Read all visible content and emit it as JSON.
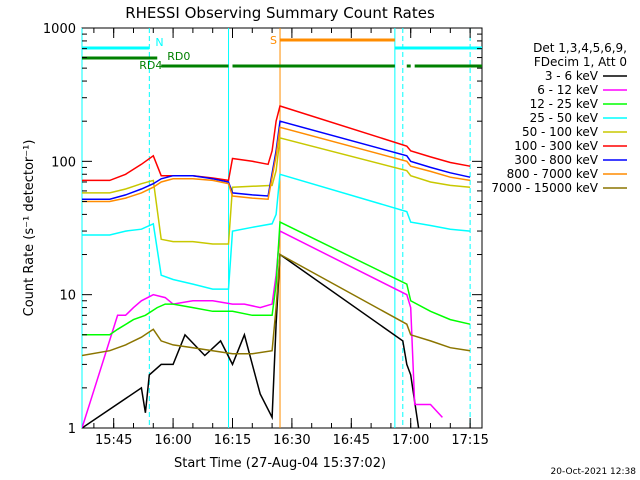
{
  "chart_data": {
    "type": "line",
    "title": "RHESSI Observing Summary Count Rates",
    "xlabel": "Start Time (27-Aug-04 15:37:02)",
    "ylabel": "Count Rate (s⁻¹ detector⁻¹)",
    "yscale": "log",
    "ylim": [
      1,
      1000
    ],
    "xlim": [
      "15:37",
      "17:18"
    ],
    "x_ticks": [
      "15:45",
      "16:00",
      "16:15",
      "16:30",
      "16:45",
      "17:00",
      "17:15"
    ],
    "y_ticks": [
      "1",
      "10",
      "100",
      "1000"
    ],
    "legend_header": [
      "Det 1,3,4,5,6,9,",
      "FDecim 1, Att 0"
    ],
    "legend_position": "right",
    "series": [
      {
        "name": "3 - 6 keV",
        "color": "#000000",
        "points": [
          [
            "15:37",
            1.0
          ],
          [
            "15:52",
            2.0
          ],
          [
            "15:53",
            1.3
          ],
          [
            "15:54",
            2.5
          ],
          [
            "15:57",
            3.0
          ],
          [
            "16:00",
            3.0
          ],
          [
            "16:03",
            5.0
          ],
          [
            "16:08",
            3.5
          ],
          [
            "16:12",
            4.5
          ],
          [
            "16:15",
            3.0
          ],
          [
            "16:18",
            5.0
          ],
          [
            "16:22",
            1.8
          ],
          [
            "16:25",
            1.2
          ],
          [
            "16:26",
            6.0
          ],
          [
            "16:27",
            20.0
          ],
          [
            "16:58",
            4.5
          ],
          [
            "16:59",
            3.0
          ],
          [
            "17:00",
            2.5
          ],
          [
            "17:02",
            1.0
          ]
        ]
      },
      {
        "name": "6 - 12 keV",
        "color": "#ff00ff",
        "points": [
          [
            "15:37",
            1.0
          ],
          [
            "15:46",
            7.0
          ],
          [
            "15:48",
            7.0
          ],
          [
            "15:50",
            8.0
          ],
          [
            "15:52",
            9.0
          ],
          [
            "15:55",
            10.0
          ],
          [
            "15:58",
            9.5
          ],
          [
            "16:00",
            8.5
          ],
          [
            "16:05",
            9.0
          ],
          [
            "16:10",
            9.0
          ],
          [
            "16:15",
            8.5
          ],
          [
            "16:18",
            8.5
          ],
          [
            "16:22",
            8.0
          ],
          [
            "16:25",
            8.5
          ],
          [
            "16:26",
            14.0
          ],
          [
            "16:27",
            30.0
          ],
          [
            "16:59",
            10.0
          ],
          [
            "17:00",
            8.0
          ],
          [
            "17:01",
            1.5
          ],
          [
            "17:05",
            1.5
          ],
          [
            "17:08",
            1.2
          ]
        ]
      },
      {
        "name": "12 - 25 keV",
        "color": "#00ff00",
        "points": [
          [
            "15:37",
            5.0
          ],
          [
            "15:44",
            5.0
          ],
          [
            "15:46",
            5.5
          ],
          [
            "15:50",
            6.5
          ],
          [
            "15:53",
            7.0
          ],
          [
            "15:56",
            8.0
          ],
          [
            "15:58",
            8.5
          ],
          [
            "16:00",
            8.5
          ],
          [
            "16:05",
            8.0
          ],
          [
            "16:10",
            7.5
          ],
          [
            "16:15",
            7.5
          ],
          [
            "16:20",
            7.0
          ],
          [
            "16:25",
            7.0
          ],
          [
            "16:26",
            12.0
          ],
          [
            "16:27",
            35.0
          ],
          [
            "16:59",
            12.0
          ],
          [
            "17:00",
            9.0
          ],
          [
            "17:05",
            7.5
          ],
          [
            "17:10",
            6.5
          ],
          [
            "17:15",
            6.0
          ]
        ]
      },
      {
        "name": "25 - 50 keV",
        "color": "#00ffff",
        "points": [
          [
            "15:37",
            28.0
          ],
          [
            "15:44",
            28.0
          ],
          [
            "15:48",
            30.0
          ],
          [
            "15:52",
            31.0
          ],
          [
            "15:55",
            34.0
          ],
          [
            "15:57",
            14.0
          ],
          [
            "16:00",
            13.0
          ],
          [
            "16:05",
            12.0
          ],
          [
            "16:10",
            11.0
          ],
          [
            "16:14",
            11.0
          ],
          [
            "16:15",
            30.0
          ],
          [
            "16:20",
            32.0
          ],
          [
            "16:25",
            34.0
          ],
          [
            "16:26",
            40.0
          ],
          [
            "16:27",
            80.0
          ],
          [
            "16:59",
            42.0
          ],
          [
            "17:00",
            35.0
          ],
          [
            "17:05",
            33.0
          ],
          [
            "17:10",
            31.0
          ],
          [
            "17:15",
            30.0
          ]
        ]
      },
      {
        "name": "50 - 100 keV",
        "color": "#c8c800",
        "points": [
          [
            "15:37",
            58.0
          ],
          [
            "15:44",
            58.0
          ],
          [
            "15:48",
            62.0
          ],
          [
            "15:52",
            68.0
          ],
          [
            "15:55",
            72.0
          ],
          [
            "15:57",
            26.0
          ],
          [
            "16:00",
            25.0
          ],
          [
            "16:05",
            25.0
          ],
          [
            "16:10",
            24.0
          ],
          [
            "16:14",
            24.0
          ],
          [
            "16:15",
            64.0
          ],
          [
            "16:20",
            65.0
          ],
          [
            "16:25",
            66.0
          ],
          [
            "16:26",
            85.0
          ],
          [
            "16:27",
            150.0
          ],
          [
            "16:59",
            85.0
          ],
          [
            "17:00",
            78.0
          ],
          [
            "17:05",
            70.0
          ],
          [
            "17:10",
            66.0
          ],
          [
            "17:15",
            64.0
          ]
        ]
      },
      {
        "name": "100 - 300 keV",
        "color": "#ff0000",
        "points": [
          [
            "15:37",
            72.0
          ],
          [
            "15:44",
            72.0
          ],
          [
            "15:48",
            80.0
          ],
          [
            "15:52",
            95.0
          ],
          [
            "15:55",
            110.0
          ],
          [
            "15:57",
            78.0
          ],
          [
            "16:00",
            78.0
          ],
          [
            "16:05",
            78.0
          ],
          [
            "16:10",
            75.0
          ],
          [
            "16:14",
            72.0
          ],
          [
            "16:15",
            105.0
          ],
          [
            "16:20",
            100.0
          ],
          [
            "16:24",
            95.0
          ],
          [
            "16:25",
            120.0
          ],
          [
            "16:26",
            200.0
          ],
          [
            "16:27",
            260.0
          ],
          [
            "16:59",
            130.0
          ],
          [
            "17:00",
            120.0
          ],
          [
            "17:05",
            108.0
          ],
          [
            "17:10",
            98.0
          ],
          [
            "17:15",
            92.0
          ]
        ]
      },
      {
        "name": "300 - 800 keV",
        "color": "#0000ff",
        "points": [
          [
            "15:37",
            52.0
          ],
          [
            "15:44",
            52.0
          ],
          [
            "15:48",
            56.0
          ],
          [
            "15:52",
            62.0
          ],
          [
            "15:55",
            68.0
          ],
          [
            "15:57",
            74.0
          ],
          [
            "16:00",
            78.0
          ],
          [
            "16:05",
            78.0
          ],
          [
            "16:10",
            74.0
          ],
          [
            "16:14",
            70.0
          ],
          [
            "16:15",
            58.0
          ],
          [
            "16:20",
            56.0
          ],
          [
            "16:24",
            55.0
          ],
          [
            "16:26",
            120.0
          ],
          [
            "16:27",
            200.0
          ],
          [
            "16:59",
            110.0
          ],
          [
            "17:00",
            100.0
          ],
          [
            "17:05",
            90.0
          ],
          [
            "17:10",
            82.0
          ],
          [
            "17:15",
            76.0
          ]
        ]
      },
      {
        "name": "800 - 7000 keV",
        "color": "#ff8c00",
        "points": [
          [
            "15:37",
            50.0
          ],
          [
            "15:44",
            50.0
          ],
          [
            "15:48",
            53.0
          ],
          [
            "15:52",
            58.0
          ],
          [
            "15:55",
            64.0
          ],
          [
            "15:57",
            70.0
          ],
          [
            "16:00",
            74.0
          ],
          [
            "16:05",
            74.0
          ],
          [
            "16:10",
            72.0
          ],
          [
            "16:14",
            68.0
          ],
          [
            "16:15",
            55.0
          ],
          [
            "16:20",
            53.0
          ],
          [
            "16:24",
            52.0
          ],
          [
            "16:26",
            110.0
          ],
          [
            "16:27",
            180.0
          ],
          [
            "16:59",
            100.0
          ],
          [
            "17:00",
            92.0
          ],
          [
            "17:05",
            84.0
          ],
          [
            "17:10",
            76.0
          ],
          [
            "17:15",
            72.0
          ]
        ]
      },
      {
        "name": "7000 - 15000 keV",
        "color": "#8b7500",
        "points": [
          [
            "15:37",
            3.5
          ],
          [
            "15:44",
            3.8
          ],
          [
            "15:48",
            4.2
          ],
          [
            "15:52",
            4.8
          ],
          [
            "15:55",
            5.5
          ],
          [
            "15:57",
            4.5
          ],
          [
            "16:00",
            4.2
          ],
          [
            "16:05",
            4.0
          ],
          [
            "16:10",
            3.8
          ],
          [
            "16:15",
            3.6
          ],
          [
            "16:20",
            3.6
          ],
          [
            "16:25",
            3.8
          ],
          [
            "16:26",
            8.0
          ],
          [
            "16:27",
            20.0
          ],
          [
            "16:59",
            6.0
          ],
          [
            "17:00",
            5.0
          ],
          [
            "17:05",
            4.5
          ],
          [
            "17:10",
            4.0
          ],
          [
            "17:15",
            3.8
          ]
        ]
      }
    ],
    "flag_bars": [
      {
        "label": "N",
        "color": "#00ffff",
        "segments": [
          [
            "15:37",
            "15:54"
          ],
          [
            "16:56",
            "17:18"
          ]
        ]
      },
      {
        "label": "S",
        "color": "#ff8c00",
        "segments": [
          [
            "16:27",
            "16:56"
          ]
        ]
      },
      {
        "label": "RD0",
        "color": "#008000",
        "segments": [
          [
            "15:57",
            "16:14"
          ],
          [
            "16:15",
            "16:27"
          ],
          [
            "16:27",
            "16:56"
          ],
          [
            "16:59",
            "17:00"
          ],
          [
            "17:01",
            "17:18"
          ]
        ]
      },
      {
        "label": "RD4",
        "color": "#008000",
        "segments": [
          [
            "15:37",
            "15:56"
          ]
        ]
      }
    ],
    "vertical_markers": [
      {
        "time": "15:37",
        "color": "#00ffff",
        "style": "solid"
      },
      {
        "time": "15:54",
        "color": "#00ffff",
        "style": "dashed"
      },
      {
        "time": "16:14",
        "color": "#00ffff",
        "style": "solid"
      },
      {
        "time": "16:27",
        "color": "#ff8c00",
        "style": "solid"
      },
      {
        "time": "16:56",
        "color": "#00ffff",
        "style": "solid"
      },
      {
        "time": "16:58",
        "color": "#00ffff",
        "style": "dashed"
      },
      {
        "time": "17:15",
        "color": "#00ffff",
        "style": "dashed"
      }
    ]
  },
  "footer": {
    "timestamp": "20-Oct-2021 12:38"
  }
}
